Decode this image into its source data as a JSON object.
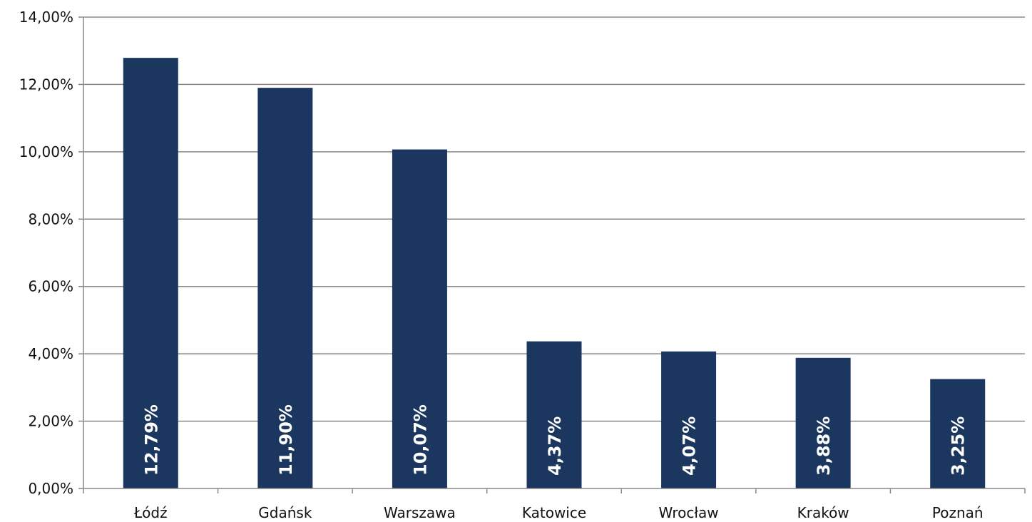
{
  "chart_data": {
    "type": "bar",
    "categories": [
      "Łódź",
      "Gdańsk",
      "Warszawa",
      "Katowice",
      "Wrocław",
      "Kraków",
      "Poznań"
    ],
    "values": [
      12.79,
      11.9,
      10.07,
      4.37,
      4.07,
      3.88,
      3.25
    ],
    "data_labels": [
      "12,79%",
      "11,90%",
      "10,07%",
      "4,37%",
      "4,07%",
      "3,88%",
      "3,25%"
    ],
    "y_ticks": [
      0,
      2,
      4,
      6,
      8,
      10,
      12,
      14
    ],
    "y_tick_labels": [
      "0,00%",
      "2,00%",
      "4,00%",
      "6,00%",
      "8,00%",
      "10,00%",
      "12,00%",
      "14,00%"
    ],
    "ylim": [
      0,
      14
    ],
    "title": "",
    "xlabel": "",
    "ylabel": "",
    "grid": true,
    "bar_color": "#1c375f",
    "grid_color": "#888888"
  }
}
